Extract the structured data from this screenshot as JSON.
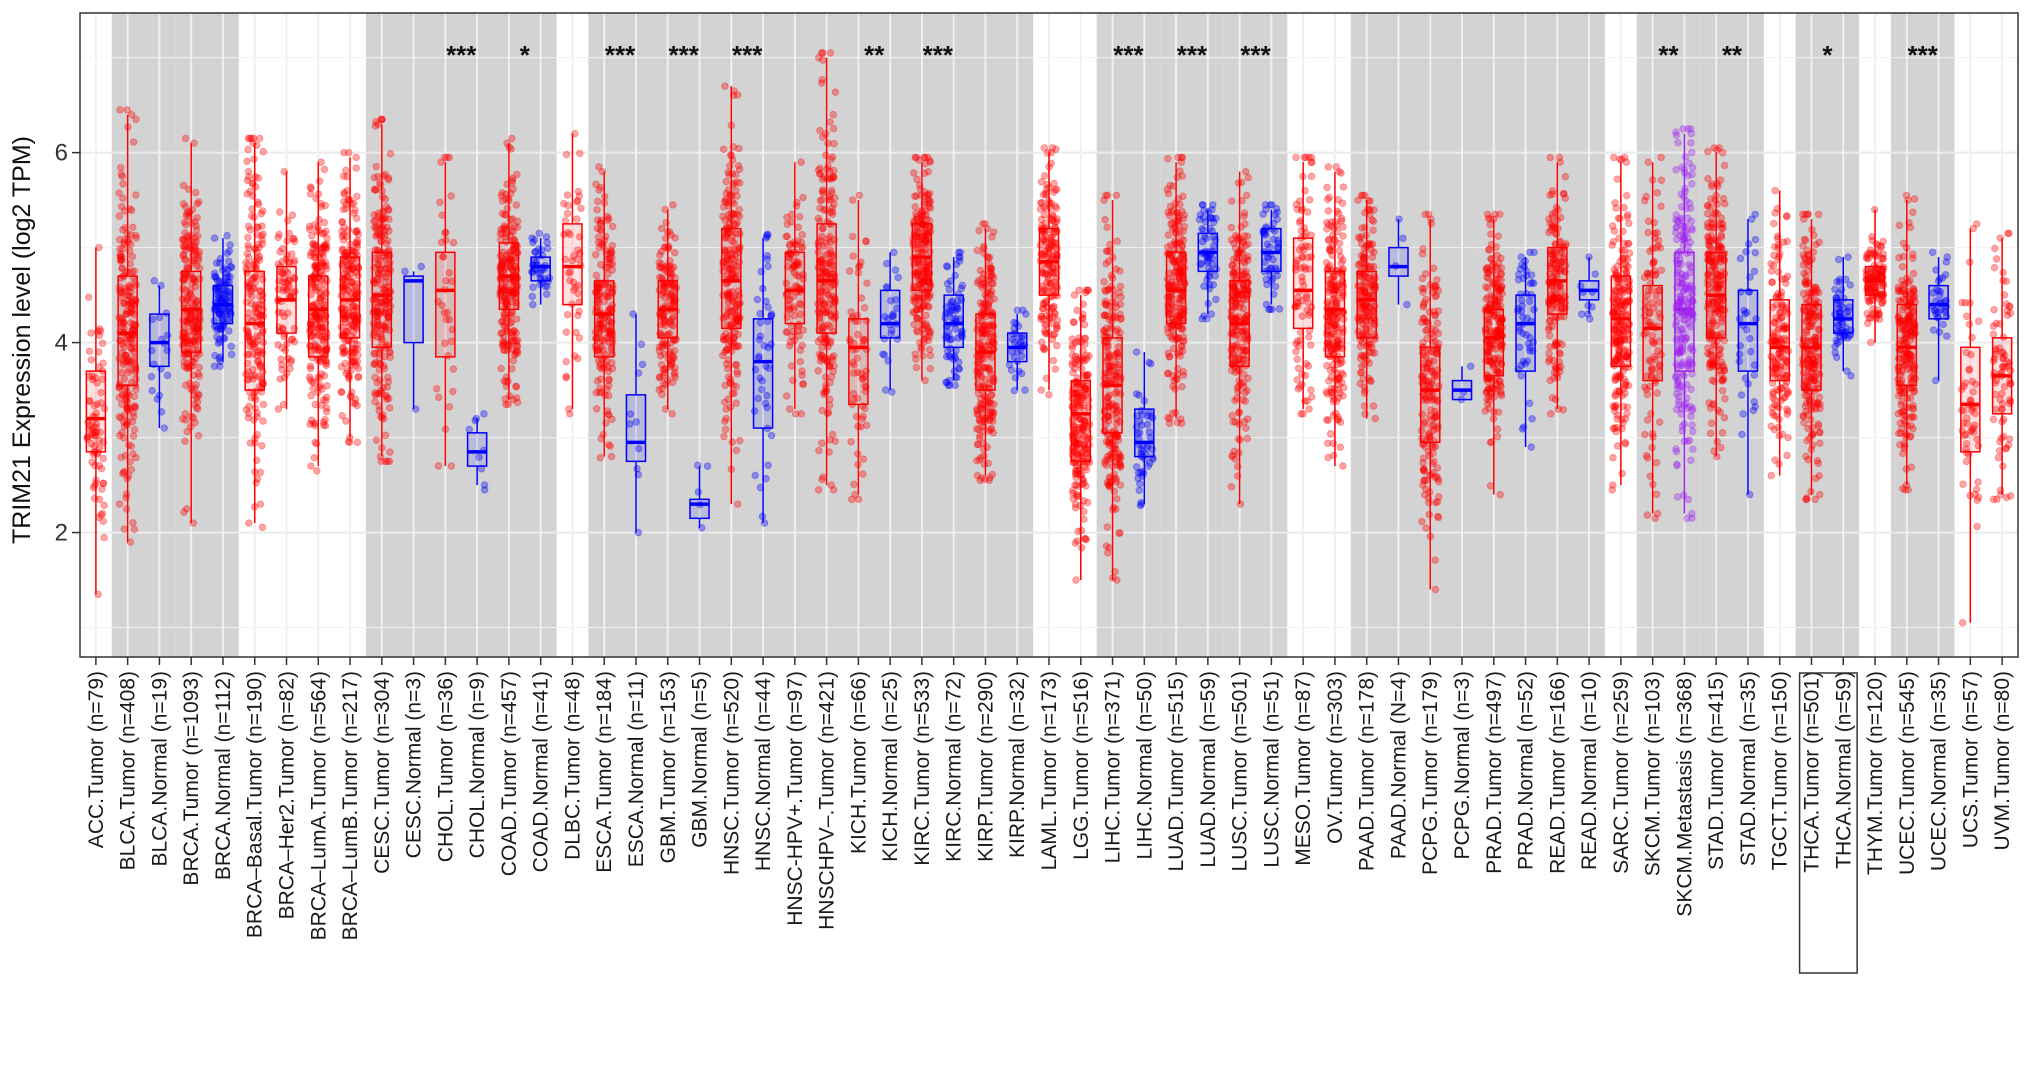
{
  "chart_data": {
    "type": "box",
    "title": "",
    "ylabel": "TRIM21 Expression level (log2 TPM)",
    "xlabel": "",
    "ylim": [
      0.69,
      7.47
    ],
    "yticks": [
      2,
      4,
      6
    ],
    "grid": true,
    "colors": {
      "Tumor": "#ff0000",
      "Normal": "#0000ff",
      "Metastasis": "#a020f0",
      "shade": "#d3d3d3"
    },
    "highlighted_labels": [
      "THCA.Tumor (n=501)",
      "THCA.Normal (n=59)"
    ],
    "categories": [
      {
        "label": "ACC.Tumor (n=79)",
        "kind": "Tumor",
        "n": 79,
        "median": 3.2,
        "q1": 2.85,
        "q3": 3.7,
        "min": 1.35,
        "max": 5.0
      },
      {
        "label": "BLCA.Tumor (n=408)",
        "kind": "Tumor",
        "n": 408,
        "median": 4.1,
        "q1": 3.55,
        "q3": 4.7,
        "min": 1.9,
        "max": 6.4
      },
      {
        "label": "BLCA.Normal (n=19)",
        "kind": "Normal",
        "n": 19,
        "median": 4.0,
        "q1": 3.75,
        "q3": 4.3,
        "min": 3.1,
        "max": 4.6
      },
      {
        "label": "BRCA.Tumor (n=1093)",
        "kind": "Tumor",
        "n": 1093,
        "median": 4.35,
        "q1": 3.9,
        "q3": 4.75,
        "min": 2.1,
        "max": 6.1
      },
      {
        "label": "BRCA.Normal (n=112)",
        "kind": "Normal",
        "n": 112,
        "median": 4.4,
        "q1": 4.2,
        "q3": 4.6,
        "min": 3.8,
        "max": 5.1
      },
      {
        "label": "BRCA–Basal.Tumor (n=190)",
        "kind": "Tumor",
        "n": 190,
        "median": 4.2,
        "q1": 3.5,
        "q3": 4.75,
        "min": 2.1,
        "max": 6.1
      },
      {
        "label": "BRCA–Her2.Tumor (n=82)",
        "kind": "Tumor",
        "n": 82,
        "median": 4.45,
        "q1": 4.1,
        "q3": 4.8,
        "min": 3.3,
        "max": 5.8
      },
      {
        "label": "BRCA–LumA.Tumor (n=564)",
        "kind": "Tumor",
        "n": 564,
        "median": 4.35,
        "q1": 3.85,
        "q3": 4.7,
        "min": 2.7,
        "max": 5.9
      },
      {
        "label": "BRCA–LumB.Tumor (n=217)",
        "kind": "Tumor",
        "n": 217,
        "median": 4.45,
        "q1": 4.05,
        "q3": 4.9,
        "min": 3.0,
        "max": 5.95
      },
      {
        "label": "CESC.Tumor (n=304)",
        "kind": "Tumor",
        "n": 304,
        "median": 4.5,
        "q1": 3.95,
        "q3": 4.95,
        "min": 2.8,
        "max": 6.3
      },
      {
        "label": "CESC.Normal (n=3)",
        "kind": "Normal",
        "n": 3,
        "median": 4.65,
        "q1": 4.0,
        "q3": 4.7,
        "min": 3.3,
        "max": 4.75
      },
      {
        "label": "CHOL.Tumor (n=36)",
        "kind": "Tumor",
        "n": 36,
        "median": 4.55,
        "q1": 3.85,
        "q3": 4.95,
        "min": 2.7,
        "max": 5.9
      },
      {
        "label": "CHOL.Normal (n=9)",
        "kind": "Normal",
        "n": 9,
        "median": 2.85,
        "q1": 2.7,
        "q3": 3.05,
        "min": 2.5,
        "max": 3.2
      },
      {
        "label": "COAD.Tumor (n=457)",
        "kind": "Tumor",
        "n": 457,
        "median": 4.7,
        "q1": 4.35,
        "q3": 5.05,
        "min": 3.4,
        "max": 6.1
      },
      {
        "label": "COAD.Normal (n=41)",
        "kind": "Normal",
        "n": 41,
        "median": 4.8,
        "q1": 4.65,
        "q3": 4.9,
        "min": 4.4,
        "max": 5.1
      },
      {
        "label": "DLBC.Tumor (n=48)",
        "kind": "Tumor",
        "n": 48,
        "median": 4.8,
        "q1": 4.4,
        "q3": 5.25,
        "min": 3.3,
        "max": 6.2
      },
      {
        "label": "ESCA.Tumor (n=184)",
        "kind": "Tumor",
        "n": 184,
        "median": 4.3,
        "q1": 3.85,
        "q3": 4.65,
        "min": 2.8,
        "max": 5.8
      },
      {
        "label": "ESCA.Normal (n=11)",
        "kind": "Normal",
        "n": 11,
        "median": 2.95,
        "q1": 2.75,
        "q3": 3.45,
        "min": 2.0,
        "max": 4.3
      },
      {
        "label": "GBM.Tumor (n=153)",
        "kind": "Tumor",
        "n": 153,
        "median": 4.35,
        "q1": 4.05,
        "q3": 4.65,
        "min": 3.3,
        "max": 5.4
      },
      {
        "label": "GBM.Normal (n=5)",
        "kind": "Normal",
        "n": 5,
        "median": 2.3,
        "q1": 2.15,
        "q3": 2.35,
        "min": 2.05,
        "max": 2.7
      },
      {
        "label": "HNSC.Tumor (n=520)",
        "kind": "Tumor",
        "n": 520,
        "median": 4.65,
        "q1": 4.15,
        "q3": 5.2,
        "min": 2.3,
        "max": 6.7
      },
      {
        "label": "HNSC.Normal (n=44)",
        "kind": "Normal",
        "n": 44,
        "median": 3.8,
        "q1": 3.1,
        "q3": 4.25,
        "min": 2.1,
        "max": 5.1
      },
      {
        "label": "HNSC-HPV+.Tumor (n=97)",
        "kind": "Tumor",
        "n": 97,
        "median": 4.55,
        "q1": 4.2,
        "q3": 4.95,
        "min": 3.3,
        "max": 5.9
      },
      {
        "label": "HNSCHPV–.Tumor (n=421)",
        "kind": "Tumor",
        "n": 421,
        "median": 4.65,
        "q1": 4.1,
        "q3": 5.25,
        "min": 2.5,
        "max": 7.0
      },
      {
        "label": "KICH.Tumor (n=66)",
        "kind": "Tumor",
        "n": 66,
        "median": 3.95,
        "q1": 3.35,
        "q3": 4.25,
        "min": 2.4,
        "max": 5.5
      },
      {
        "label": "KICH.Normal (n=25)",
        "kind": "Normal",
        "n": 25,
        "median": 4.2,
        "q1": 4.05,
        "q3": 4.55,
        "min": 3.5,
        "max": 4.95
      },
      {
        "label": "KIRC.Tumor (n=533)",
        "kind": "Tumor",
        "n": 533,
        "median": 4.9,
        "q1": 4.55,
        "q3": 5.25,
        "min": 3.6,
        "max": 5.9
      },
      {
        "label": "KIRC.Normal (n=72)",
        "kind": "Normal",
        "n": 72,
        "median": 4.2,
        "q1": 3.95,
        "q3": 4.5,
        "min": 3.6,
        "max": 4.9
      },
      {
        "label": "KIRP.Tumor (n=290)",
        "kind": "Tumor",
        "n": 290,
        "median": 3.9,
        "q1": 3.5,
        "q3": 4.3,
        "min": 2.6,
        "max": 5.2
      },
      {
        "label": "KIRP.Normal (n=32)",
        "kind": "Normal",
        "n": 32,
        "median": 3.95,
        "q1": 3.8,
        "q3": 4.1,
        "min": 3.5,
        "max": 4.3
      },
      {
        "label": "LAML.Tumor (n=173)",
        "kind": "Tumor",
        "n": 173,
        "median": 4.85,
        "q1": 4.5,
        "q3": 5.2,
        "min": 3.5,
        "max": 6.0
      },
      {
        "label": "LGG.Tumor (n=516)",
        "kind": "Tumor",
        "n": 516,
        "median": 3.25,
        "q1": 2.75,
        "q3": 3.6,
        "min": 1.5,
        "max": 4.5
      },
      {
        "label": "LIHC.Tumor (n=371)",
        "kind": "Tumor",
        "n": 371,
        "median": 3.55,
        "q1": 3.05,
        "q3": 4.05,
        "min": 1.5,
        "max": 5.5
      },
      {
        "label": "LIHC.Normal (n=50)",
        "kind": "Normal",
        "n": 50,
        "median": 2.95,
        "q1": 2.8,
        "q3": 3.3,
        "min": 2.3,
        "max": 3.9
      },
      {
        "label": "LUAD.Tumor (n=515)",
        "kind": "Tumor",
        "n": 515,
        "median": 4.55,
        "q1": 4.2,
        "q3": 4.95,
        "min": 3.2,
        "max": 5.9
      },
      {
        "label": "LUAD.Normal (n=59)",
        "kind": "Normal",
        "n": 59,
        "median": 4.95,
        "q1": 4.75,
        "q3": 5.15,
        "min": 4.3,
        "max": 5.4
      },
      {
        "label": "LUSC.Tumor (n=501)",
        "kind": "Tumor",
        "n": 501,
        "median": 4.2,
        "q1": 3.75,
        "q3": 4.65,
        "min": 2.3,
        "max": 5.8
      },
      {
        "label": "LUSC.Normal (n=51)",
        "kind": "Normal",
        "n": 51,
        "median": 4.95,
        "q1": 4.75,
        "q3": 5.2,
        "min": 4.4,
        "max": 5.4
      },
      {
        "label": "MESO.Tumor (n=87)",
        "kind": "Tumor",
        "n": 87,
        "median": 4.55,
        "q1": 4.15,
        "q3": 5.1,
        "min": 3.3,
        "max": 5.9
      },
      {
        "label": "OV.Tumor (n=303)",
        "kind": "Tumor",
        "n": 303,
        "median": 4.35,
        "q1": 3.85,
        "q3": 4.75,
        "min": 2.7,
        "max": 5.8
      },
      {
        "label": "PAAD.Tumor (n=178)",
        "kind": "Tumor",
        "n": 178,
        "median": 4.45,
        "q1": 4.05,
        "q3": 4.75,
        "min": 3.2,
        "max": 5.5
      },
      {
        "label": "PAAD.Normal (N=4)",
        "kind": "Normal",
        "n": 4,
        "median": 4.8,
        "q1": 4.7,
        "q3": 5.0,
        "min": 4.4,
        "max": 5.3
      },
      {
        "label": "PCPG.Tumor (n=179)",
        "kind": "Tumor",
        "n": 179,
        "median": 3.5,
        "q1": 2.95,
        "q3": 3.95,
        "min": 1.4,
        "max": 5.3
      },
      {
        "label": "PCPG.Normal (n=3)",
        "kind": "Normal",
        "n": 3,
        "median": 3.5,
        "q1": 3.4,
        "q3": 3.6,
        "min": 3.4,
        "max": 3.75
      },
      {
        "label": "PRAD.Tumor (n=497)",
        "kind": "Tumor",
        "n": 497,
        "median": 4.05,
        "q1": 3.65,
        "q3": 4.35,
        "min": 2.4,
        "max": 5.3
      },
      {
        "label": "PRAD.Normal (n=52)",
        "kind": "Normal",
        "n": 52,
        "median": 4.2,
        "q1": 3.7,
        "q3": 4.5,
        "min": 2.9,
        "max": 4.9
      },
      {
        "label": "READ.Tumor (n=166)",
        "kind": "Tumor",
        "n": 166,
        "median": 4.65,
        "q1": 4.3,
        "q3": 5.0,
        "min": 3.3,
        "max": 5.9
      },
      {
        "label": "READ.Normal (n=10)",
        "kind": "Normal",
        "n": 10,
        "median": 4.55,
        "q1": 4.45,
        "q3": 4.65,
        "min": 4.3,
        "max": 4.9
      },
      {
        "label": "SARC.Tumor (n=259)",
        "kind": "Tumor",
        "n": 259,
        "median": 4.25,
        "q1": 3.75,
        "q3": 4.7,
        "min": 2.5,
        "max": 5.9
      },
      {
        "label": "SKCM.Tumor (n=103)",
        "kind": "Tumor",
        "n": 103,
        "median": 4.15,
        "q1": 3.6,
        "q3": 4.6,
        "min": 2.2,
        "max": 5.9
      },
      {
        "label": "SKCM.Metastasis (n=368)",
        "kind": "Metastasis",
        "n": 368,
        "median": 4.35,
        "q1": 3.7,
        "q3": 4.95,
        "min": 2.2,
        "max": 6.2
      },
      {
        "label": "STAD.Tumor (n=415)",
        "kind": "Tumor",
        "n": 415,
        "median": 4.5,
        "q1": 4.05,
        "q3": 4.95,
        "min": 2.8,
        "max": 6.0
      },
      {
        "label": "STAD.Normal (n=35)",
        "kind": "Normal",
        "n": 35,
        "median": 4.2,
        "q1": 3.7,
        "q3": 4.55,
        "min": 2.4,
        "max": 5.3
      },
      {
        "label": "TGCT.Tumor (n=150)",
        "kind": "Tumor",
        "n": 150,
        "median": 3.95,
        "q1": 3.6,
        "q3": 4.45,
        "min": 2.6,
        "max": 5.6
      },
      {
        "label": "THCA.Tumor (n=501)",
        "kind": "Tumor",
        "n": 501,
        "median": 3.95,
        "q1": 3.5,
        "q3": 4.4,
        "min": 2.4,
        "max": 5.3
      },
      {
        "label": "THCA.Normal (n=59)",
        "kind": "Normal",
        "n": 59,
        "median": 4.25,
        "q1": 4.1,
        "q3": 4.45,
        "min": 3.7,
        "max": 4.9
      },
      {
        "label": "THYM.Tumor (n=120)",
        "kind": "Tumor",
        "n": 120,
        "median": 4.65,
        "q1": 4.5,
        "q3": 4.8,
        "min": 4.0,
        "max": 5.4
      },
      {
        "label": "UCEC.Tumor (n=545)",
        "kind": "Tumor",
        "n": 545,
        "median": 3.95,
        "q1": 3.55,
        "q3": 4.4,
        "min": 2.5,
        "max": 5.5
      },
      {
        "label": "UCEC.Normal (n=35)",
        "kind": "Normal",
        "n": 35,
        "median": 4.4,
        "q1": 4.25,
        "q3": 4.6,
        "min": 3.6,
        "max": 4.9
      },
      {
        "label": "UCS.Tumor (n=57)",
        "kind": "Tumor",
        "n": 57,
        "median": 3.35,
        "q1": 2.85,
        "q3": 3.95,
        "min": 1.05,
        "max": 5.2
      },
      {
        "label": "UVM.Tumor (n=80)",
        "kind": "Tumor",
        "n": 80,
        "median": 3.65,
        "q1": 3.25,
        "q3": 4.05,
        "min": 2.4,
        "max": 5.1
      }
    ],
    "shaded_pairs": [
      [
        1,
        2
      ],
      [
        3,
        4
      ],
      [
        9,
        10
      ],
      [
        11,
        12
      ],
      [
        13,
        14
      ],
      [
        16,
        17
      ],
      [
        18,
        19
      ],
      [
        20,
        21
      ],
      [
        22,
        23
      ],
      [
        24,
        25
      ],
      [
        26,
        27
      ],
      [
        28,
        29
      ],
      [
        32,
        33
      ],
      [
        34,
        35
      ],
      [
        36,
        37
      ],
      [
        40,
        41
      ],
      [
        42,
        43
      ],
      [
        44,
        45
      ],
      [
        46,
        47
      ],
      [
        49,
        50
      ],
      [
        51,
        52
      ],
      [
        54,
        55
      ],
      [
        57,
        58
      ]
    ],
    "significance": [
      {
        "pair": [
          11,
          12
        ],
        "label": "***"
      },
      {
        "pair": [
          13,
          14
        ],
        "label": "*"
      },
      {
        "pair": [
          16,
          17
        ],
        "label": "***"
      },
      {
        "pair": [
          18,
          19
        ],
        "label": "***"
      },
      {
        "pair": [
          20,
          21
        ],
        "label": "***"
      },
      {
        "pair": [
          24,
          25
        ],
        "label": "**"
      },
      {
        "pair": [
          26,
          27
        ],
        "label": "***"
      },
      {
        "pair": [
          32,
          33
        ],
        "label": "***"
      },
      {
        "pair": [
          34,
          35
        ],
        "label": "***"
      },
      {
        "pair": [
          36,
          37
        ],
        "label": "***"
      },
      {
        "pair": [
          49,
          50
        ],
        "label": "**"
      },
      {
        "pair": [
          51,
          52
        ],
        "label": "**"
      },
      {
        "pair": [
          54,
          55
        ],
        "label": "*"
      },
      {
        "pair": [
          57,
          58
        ],
        "label": "***"
      }
    ],
    "significance_y": 7.06
  }
}
